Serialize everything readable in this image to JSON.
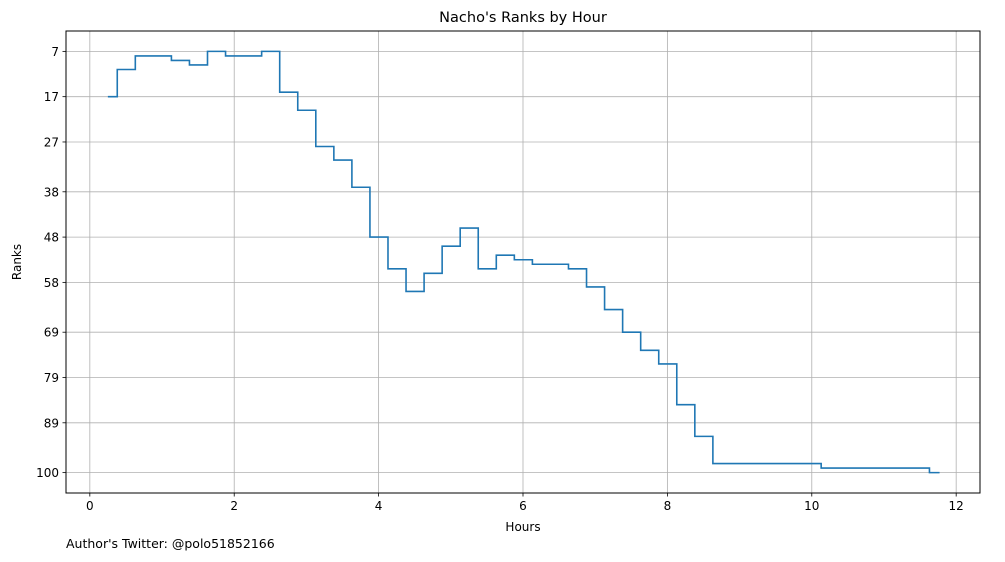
{
  "chart_data": {
    "type": "line",
    "drawstyle": "steps-post",
    "title": "Nacho's Ranks by Hour",
    "xlabel": "Hours",
    "ylabel": "Ranks",
    "xlim": [
      -0.33,
      12.33
    ],
    "ylim": [
      104.5,
      2.5
    ],
    "y_inverted": true,
    "grid": true,
    "line_color": "#1f77b4",
    "x_ticks": [
      0,
      2,
      4,
      6,
      8,
      10,
      12
    ],
    "x_tick_labels": [
      "0",
      "2",
      "4",
      "6",
      "8",
      "10",
      "12"
    ],
    "y_ticks": [
      7,
      17,
      27,
      38,
      48,
      58,
      69,
      79,
      89,
      100
    ],
    "y_tick_labels": [
      "7",
      "17",
      "27",
      "38",
      "48",
      "58",
      "69",
      "79",
      "89",
      "100"
    ],
    "series": [
      {
        "x": [
          0.25,
          0.38,
          0.63,
          1.13,
          1.38,
          1.63,
          1.88,
          2.38,
          2.63,
          2.88,
          3.13,
          3.38,
          3.63,
          3.88,
          4.13,
          4.38,
          4.63,
          4.88,
          5.13,
          5.38,
          5.63,
          5.88,
          6.13,
          6.63,
          6.88,
          7.13,
          7.38,
          7.63,
          7.88,
          8.13,
          8.38,
          8.63,
          10.13,
          11.63,
          11.77
        ],
        "y": [
          17,
          11,
          8,
          9,
          10,
          7,
          8,
          7,
          16,
          20,
          28,
          31,
          37,
          48,
          55,
          60,
          56,
          50,
          46,
          55,
          52,
          53,
          54,
          55,
          59,
          64,
          69,
          73,
          76,
          85,
          92,
          98,
          99,
          100,
          100
        ]
      }
    ]
  },
  "footer": {
    "author": "Author's Twitter: @polo51852166"
  }
}
